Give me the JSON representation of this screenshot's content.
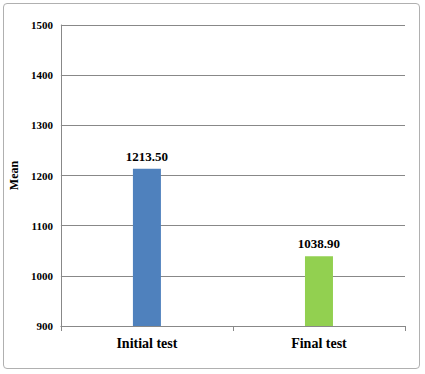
{
  "chart_data": {
    "type": "bar",
    "y_label": "Mean",
    "categories": [
      "Initial test",
      "Final test"
    ],
    "values": [
      1213.5,
      1038.9
    ],
    "value_labels": [
      "1213.50",
      "1038.90"
    ],
    "colors": [
      "#4f81bd",
      "#92d050"
    ],
    "data_labels": true,
    "ylim": [
      900,
      1500
    ],
    "yticks": [
      900,
      1000,
      1100,
      1200,
      1300,
      1400,
      1500
    ],
    "grid": true
  }
}
